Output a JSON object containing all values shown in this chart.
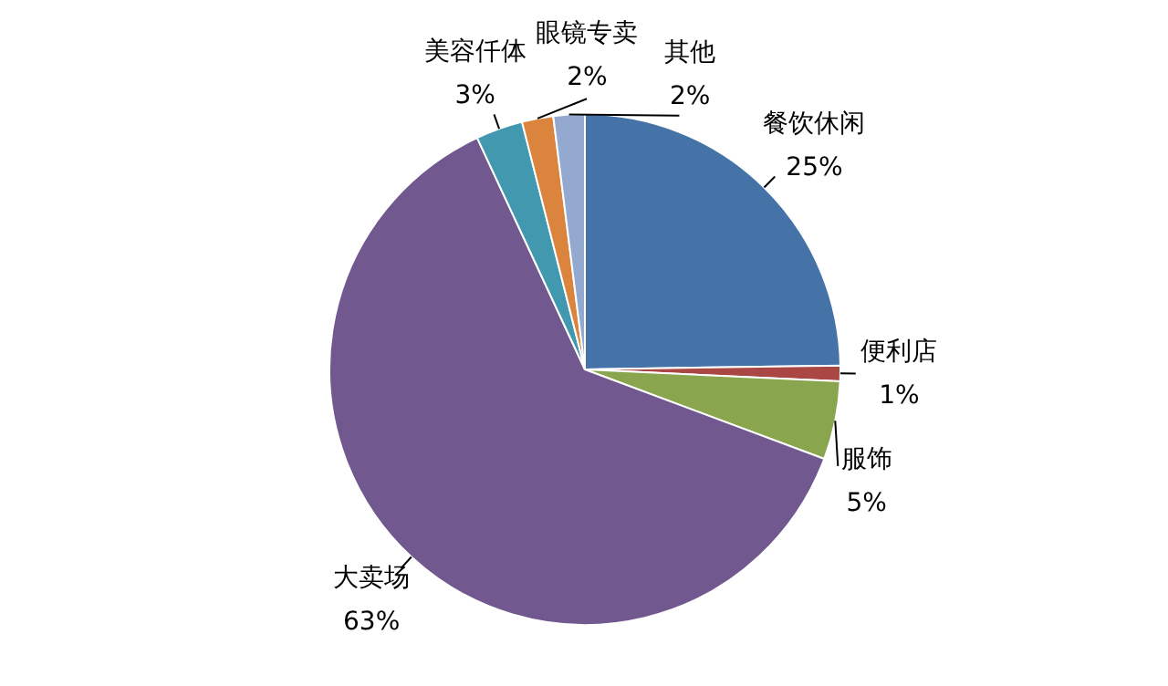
{
  "chart_data": {
    "type": "pie",
    "categories": [
      "餐饮休闲",
      "便利店",
      "服饰",
      "大卖场",
      "美容仟体",
      "眼镜专卖",
      "其他"
    ],
    "values": [
      25,
      1,
      5,
      63,
      3,
      2,
      2
    ],
    "value_labels": [
      "25%",
      "1%",
      "5%",
      "63%",
      "3%",
      "2%",
      "2%"
    ],
    "colors": [
      "#4572a7",
      "#aa4643",
      "#89a54e",
      "#71588f",
      "#4198af",
      "#db843d",
      "#93a9cf"
    ],
    "legend": false
  }
}
